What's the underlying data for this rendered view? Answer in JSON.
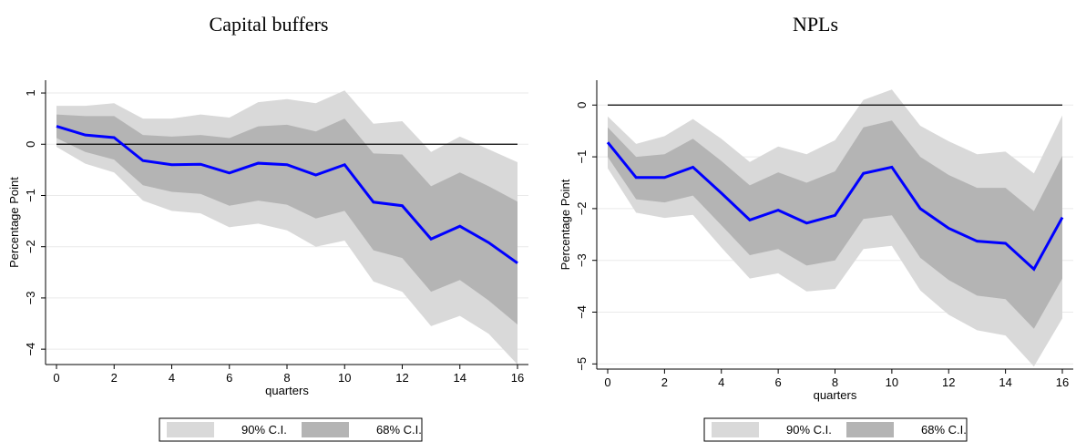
{
  "chart_data": [
    {
      "type": "line",
      "title": "Capital buffers",
      "ylabel": "Percentage Point",
      "xlabel": "quarters",
      "x": [
        0,
        1,
        2,
        3,
        4,
        5,
        6,
        7,
        8,
        9,
        10,
        11,
        12,
        13,
        14,
        15,
        16
      ],
      "xlim": [
        0,
        16
      ],
      "xticks": [
        0,
        2,
        4,
        6,
        8,
        10,
        12,
        14,
        16
      ],
      "ylim": [
        -4.3,
        1.25
      ],
      "yticks": [
        1,
        0,
        {
          "value": -1,
          "label": "−1"
        },
        {
          "value": -2,
          "label": "−2"
        },
        {
          "value": -3,
          "label": "−3"
        },
        {
          "value": -4,
          "label": "−4"
        }
      ],
      "grid": true,
      "hline": 0,
      "bands": [
        {
          "name": "90% C.I.",
          "color": "#d9d9d9",
          "upper": [
            0.75,
            0.75,
            0.8,
            0.5,
            0.5,
            0.58,
            0.52,
            0.82,
            0.88,
            0.8,
            1.05,
            0.4,
            0.45,
            -0.15,
            0.15,
            -0.1,
            -0.35
          ],
          "lower": [
            -0.05,
            -0.38,
            -0.55,
            -1.1,
            -1.3,
            -1.35,
            -1.62,
            -1.55,
            -1.68,
            -2.0,
            -1.88,
            -2.68,
            -2.88,
            -3.55,
            -3.35,
            -3.7,
            -4.3
          ]
        },
        {
          "name": "68% C.I.",
          "color": "#b4b4b4",
          "upper": [
            0.58,
            0.55,
            0.55,
            0.18,
            0.15,
            0.18,
            0.12,
            0.35,
            0.38,
            0.25,
            0.5,
            -0.18,
            -0.2,
            -0.82,
            -0.55,
            -0.82,
            -1.12
          ],
          "lower": [
            0.12,
            -0.15,
            -0.3,
            -0.8,
            -0.93,
            -0.97,
            -1.2,
            -1.1,
            -1.18,
            -1.45,
            -1.3,
            -2.07,
            -2.22,
            -2.88,
            -2.65,
            -3.05,
            -3.52
          ]
        }
      ],
      "line": {
        "color": "#0000ff",
        "values": [
          0.35,
          0.18,
          0.13,
          -0.32,
          -0.4,
          -0.39,
          -0.56,
          -0.37,
          -0.4,
          -0.6,
          -0.4,
          -1.13,
          -1.2,
          -1.85,
          -1.6,
          -1.92,
          -2.32
        ]
      }
    },
    {
      "type": "line",
      "title": "NPLs",
      "ylabel": "Percentage Point",
      "xlabel": "quarters",
      "x": [
        0,
        1,
        2,
        3,
        4,
        5,
        6,
        7,
        8,
        9,
        10,
        11,
        12,
        13,
        14,
        15,
        16
      ],
      "xlim": [
        0,
        16
      ],
      "xticks": [
        0,
        2,
        4,
        6,
        8,
        10,
        12,
        14,
        16
      ],
      "ylim": [
        -5.1,
        0.48
      ],
      "yticks": [
        0,
        {
          "value": -1,
          "label": "−1"
        },
        {
          "value": -2,
          "label": "−2"
        },
        {
          "value": -3,
          "label": "−3"
        },
        {
          "value": -4,
          "label": "−4"
        },
        {
          "value": -5,
          "label": "−5"
        }
      ],
      "grid": true,
      "hline": 0,
      "bands": [
        {
          "name": "90% C.I.",
          "color": "#d9d9d9",
          "upper": [
            -0.22,
            -0.75,
            -0.6,
            -0.27,
            -0.65,
            -1.1,
            -0.8,
            -0.95,
            -0.68,
            0.1,
            0.3,
            -0.4,
            -0.7,
            -0.95,
            -0.9,
            -1.32,
            -0.2
          ],
          "lower": [
            -1.22,
            -2.08,
            -2.18,
            -2.12,
            -2.75,
            -3.35,
            -3.25,
            -3.6,
            -3.55,
            -2.78,
            -2.72,
            -3.58,
            -4.05,
            -4.35,
            -4.45,
            -5.05,
            -4.12
          ]
        },
        {
          "name": "68% C.I.",
          "color": "#b4b4b4",
          "upper": [
            -0.43,
            -1.0,
            -0.95,
            -0.65,
            -1.08,
            -1.55,
            -1.3,
            -1.5,
            -1.28,
            -0.43,
            -0.3,
            -1.0,
            -1.35,
            -1.6,
            -1.6,
            -2.05,
            -0.98
          ],
          "lower": [
            -1.0,
            -1.82,
            -1.88,
            -1.75,
            -2.32,
            -2.9,
            -2.78,
            -3.1,
            -3.0,
            -2.2,
            -2.13,
            -2.95,
            -3.38,
            -3.68,
            -3.75,
            -4.32,
            -3.35
          ]
        }
      ],
      "line": {
        "color": "#0000ff",
        "values": [
          -0.72,
          -1.4,
          -1.4,
          -1.2,
          -1.7,
          -2.22,
          -2.03,
          -2.28,
          -2.13,
          -1.32,
          -1.2,
          -2.0,
          -2.38,
          -2.63,
          -2.67,
          -3.17,
          -2.17
        ]
      }
    }
  ]
}
